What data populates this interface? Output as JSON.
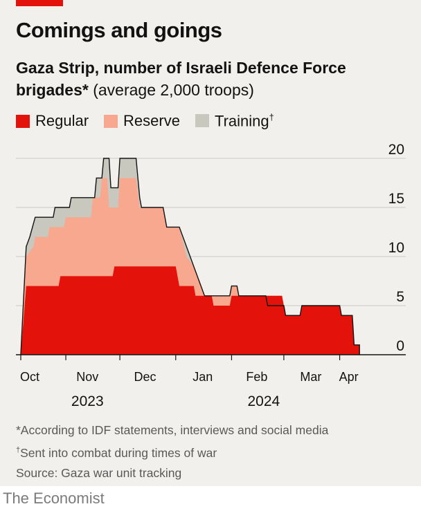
{
  "title": "Comings and goings",
  "subtitle_bold": "Gaza Strip, number of Israeli Defence Force brigades",
  "subtitle_star": "*",
  "subtitle_rest": " (average 2,000 troops)",
  "legend": [
    {
      "label": "Regular",
      "dagger": "",
      "color": "#e3120b"
    },
    {
      "label": "Reserve",
      "dagger": "",
      "color": "#f7a88f"
    },
    {
      "label": "Training",
      "dagger": "†",
      "color": "#c8c8bf"
    }
  ],
  "notes": {
    "n1": "*According to IDF statements, interviews and social media",
    "n2_mark": "†",
    "n2": "Sent into combat during times of war",
    "source": "Source: Gaza war unit tracking"
  },
  "brand": "The Economist",
  "chart_data": {
    "type": "area",
    "stacked": true,
    "x_labels": [
      "Oct",
      "Nov",
      "Dec",
      "Jan",
      "Feb",
      "Mar",
      "Apr"
    ],
    "year_labels": [
      "2023",
      "2024"
    ],
    "yticks": [
      0,
      5,
      10,
      15,
      20
    ],
    "ylim": [
      0,
      20
    ],
    "x_start": "2023-10-07",
    "x_end": "2024-04-15",
    "series": [
      {
        "name": "Regular",
        "color": "#e3120b",
        "points": [
          [
            "2023-10-07",
            0
          ],
          [
            "2023-10-10",
            7
          ],
          [
            "2023-10-28",
            7
          ],
          [
            "2023-10-29",
            8
          ],
          [
            "2023-11-27",
            8
          ],
          [
            "2023-11-28",
            9
          ],
          [
            "2024-01-01",
            9
          ],
          [
            "2024-01-03",
            7
          ],
          [
            "2024-01-11",
            7
          ],
          [
            "2024-01-12",
            6
          ],
          [
            "2024-01-21",
            6
          ],
          [
            "2024-01-22",
            5
          ],
          [
            "2024-01-31",
            5
          ],
          [
            "2024-02-01",
            6
          ],
          [
            "2024-02-29",
            6
          ],
          [
            "2024-03-02",
            4
          ],
          [
            "2024-03-10",
            4
          ],
          [
            "2024-03-11",
            5
          ],
          [
            "2024-04-01",
            5
          ],
          [
            "2024-04-02",
            4
          ],
          [
            "2024-04-08",
            4
          ],
          [
            "2024-04-09",
            1
          ],
          [
            "2024-04-12",
            1
          ],
          [
            "2024-04-12",
            0
          ]
        ]
      },
      {
        "name": "Reserve",
        "color": "#f7a88f",
        "points": [
          [
            "2023-10-07",
            0
          ],
          [
            "2023-10-10",
            10
          ],
          [
            "2023-10-14",
            11
          ],
          [
            "2023-10-15",
            12
          ],
          [
            "2023-10-22",
            12
          ],
          [
            "2023-10-23",
            13
          ],
          [
            "2023-10-31",
            13
          ],
          [
            "2023-11-01",
            14
          ],
          [
            "2023-11-15",
            14
          ],
          [
            "2023-11-16",
            16
          ],
          [
            "2023-11-20",
            16
          ],
          [
            "2023-11-21",
            18
          ],
          [
            "2023-11-24",
            18
          ],
          [
            "2023-11-25",
            15
          ],
          [
            "2023-11-30",
            15
          ],
          [
            "2023-12-01",
            18
          ],
          [
            "2023-12-10",
            18
          ],
          [
            "2023-12-12",
            15
          ],
          [
            "2023-12-25",
            15
          ],
          [
            "2023-12-27",
            13
          ],
          [
            "2024-01-03",
            13
          ],
          [
            "2024-01-07",
            10
          ],
          [
            "2024-01-11",
            9
          ],
          [
            "2024-01-15",
            7
          ],
          [
            "2024-01-17",
            6
          ],
          [
            "2024-01-31",
            6
          ],
          [
            "2024-02-01",
            7
          ],
          [
            "2024-02-04",
            7
          ],
          [
            "2024-02-05",
            6
          ],
          [
            "2024-02-29",
            6
          ],
          [
            "2024-03-02",
            4
          ],
          [
            "2024-03-10",
            4
          ],
          [
            "2024-03-11",
            5
          ],
          [
            "2024-04-01",
            5
          ],
          [
            "2024-04-02",
            4
          ],
          [
            "2024-04-08",
            4
          ],
          [
            "2024-04-09",
            1
          ],
          [
            "2024-04-12",
            1
          ],
          [
            "2024-04-12",
            0
          ]
        ]
      },
      {
        "name": "Training",
        "color": "#c8c8bf",
        "points": [
          [
            "2023-10-07",
            0
          ],
          [
            "2023-10-10",
            11
          ],
          [
            "2023-10-12",
            12
          ],
          [
            "2023-10-15",
            14
          ],
          [
            "2023-10-25",
            14
          ],
          [
            "2023-10-26",
            15
          ],
          [
            "2023-11-03",
            15
          ],
          [
            "2023-11-04",
            16
          ],
          [
            "2023-11-17",
            16
          ],
          [
            "2023-11-18",
            18
          ],
          [
            "2023-11-21",
            18
          ],
          [
            "2023-11-22",
            20
          ],
          [
            "2023-11-25",
            20
          ],
          [
            "2023-11-26",
            17
          ],
          [
            "2023-11-30",
            17
          ],
          [
            "2023-12-01",
            20
          ],
          [
            "2023-12-10",
            20
          ],
          [
            "2023-12-12",
            16
          ],
          [
            "2023-12-13",
            15
          ],
          [
            "2023-12-25",
            15
          ],
          [
            "2023-12-27",
            13
          ],
          [
            "2024-01-03",
            13
          ],
          [
            "2024-01-07",
            11
          ],
          [
            "2024-01-11",
            9
          ],
          [
            "2024-01-15",
            7
          ],
          [
            "2024-01-17",
            6
          ],
          [
            "2024-01-31",
            6
          ],
          [
            "2024-02-01",
            7
          ],
          [
            "2024-02-04",
            7
          ],
          [
            "2024-02-05",
            6
          ],
          [
            "2024-02-20",
            6
          ],
          [
            "2024-02-21",
            5
          ],
          [
            "2024-03-01",
            5
          ],
          [
            "2024-03-02",
            4
          ],
          [
            "2024-03-10",
            4
          ],
          [
            "2024-03-11",
            5
          ],
          [
            "2024-04-01",
            5
          ],
          [
            "2024-04-02",
            4
          ],
          [
            "2024-04-08",
            4
          ],
          [
            "2024-04-09",
            1
          ],
          [
            "2024-04-12",
            1
          ],
          [
            "2024-04-12",
            0
          ]
        ]
      }
    ]
  }
}
